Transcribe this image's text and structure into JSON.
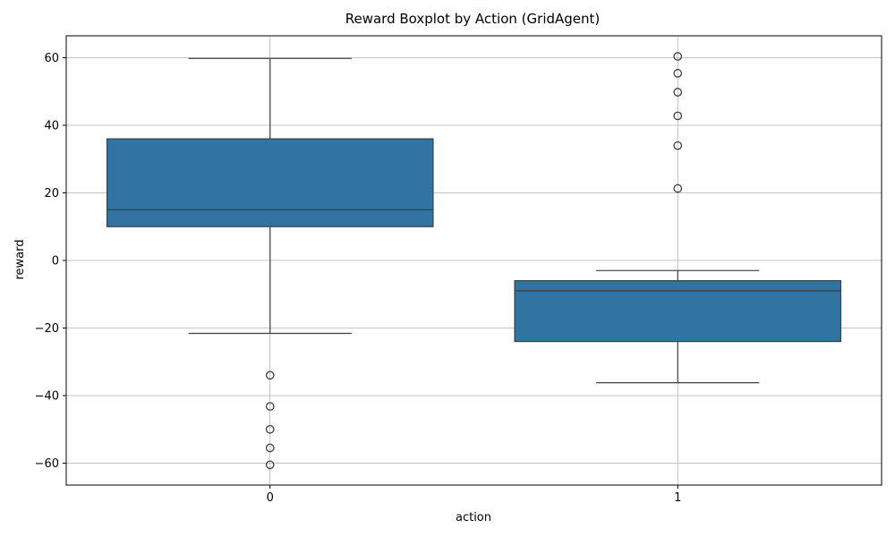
{
  "chart_data": {
    "type": "boxplot",
    "title": "Reward Boxplot by Action (GridAgent)",
    "xlabel": "action",
    "ylabel": "reward",
    "ylim": [
      -66.5,
      66.5
    ],
    "yticks": [
      -60,
      -40,
      -20,
      0,
      20,
      40,
      60
    ],
    "ytick_labels": [
      "−60",
      "−40",
      "−20",
      "0",
      "20",
      "40",
      "60"
    ],
    "grid": true,
    "categories": [
      "0",
      "1"
    ],
    "boxes": [
      {
        "category": "0",
        "whisker_low": -21.6,
        "q1": 10.0,
        "median": 15.0,
        "q3": 36.0,
        "whisker_high": 59.8,
        "outliers": [
          -34.0,
          -43.2,
          -50.0,
          -55.5,
          -60.5
        ]
      },
      {
        "category": "1",
        "whisker_low": -36.2,
        "q1": -24.0,
        "median": -9.0,
        "q3": -6.0,
        "whisker_high": -3.0,
        "outliers": [
          21.3,
          34.0,
          42.8,
          49.8,
          55.4,
          60.4
        ]
      }
    ],
    "colors": {
      "box_fill": "#3274a1",
      "box_edge": "#3f3f3f",
      "grid": "#b0b0b0",
      "axis": "#000000"
    }
  }
}
